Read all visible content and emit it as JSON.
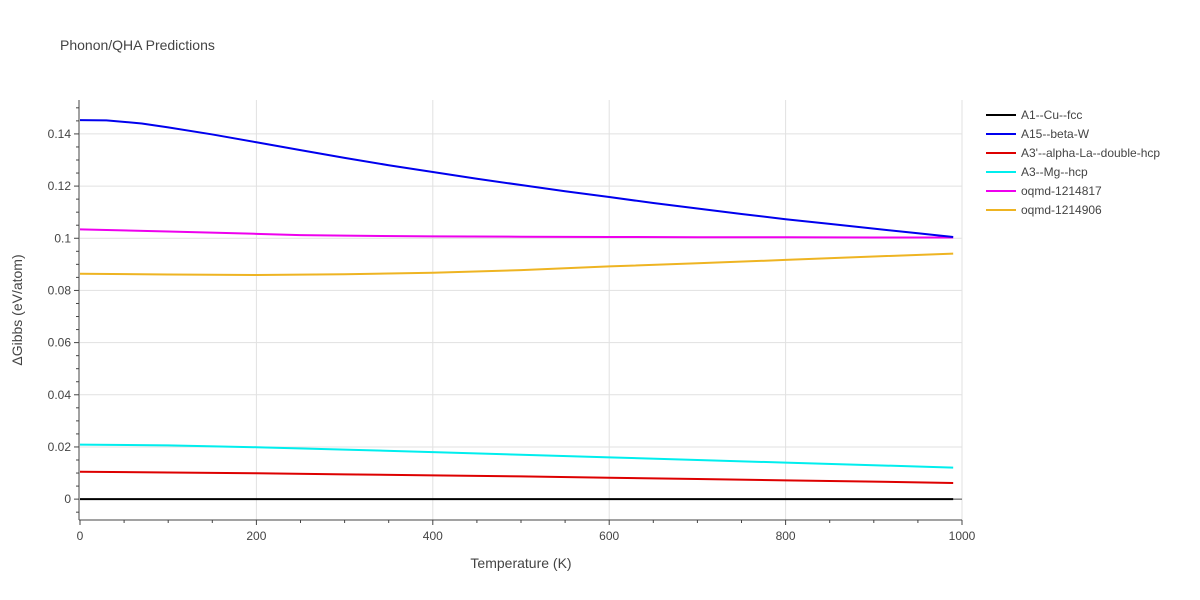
{
  "chart_data": {
    "type": "line",
    "title": "Phonon/QHA Predictions",
    "xlabel": "Temperature (K)",
    "ylabel": "ΔGibbs (eV/atom)",
    "xlim": [
      0,
      1000
    ],
    "ylim": [
      -0.008,
      0.153
    ],
    "xticks": [
      0,
      200,
      400,
      600,
      800,
      1000
    ],
    "xtick_labels": [
      "0",
      "200",
      "400",
      "600",
      "800",
      "1000"
    ],
    "yticks": [
      0,
      0.02,
      0.04,
      0.06,
      0.08,
      0.1,
      0.12,
      0.14
    ],
    "ytick_labels": [
      "0",
      "0.02",
      "0.04",
      "0.06",
      "0.08",
      "0.1",
      "0.12",
      "0.14"
    ],
    "grid": true,
    "legend_position": "top-right",
    "series": [
      {
        "name": "A1--Cu--fcc",
        "color": "#000000",
        "x": [
          0,
          990
        ],
        "y": [
          0,
          0
        ]
      },
      {
        "name": "A15--beta-W",
        "color": "#0000ee",
        "x": [
          0,
          30,
          70,
          100,
          150,
          200,
          250,
          300,
          350,
          400,
          450,
          500,
          550,
          600,
          650,
          700,
          750,
          800,
          850,
          900,
          950,
          990
        ],
        "y": [
          0.1453,
          0.1452,
          0.144,
          0.1425,
          0.1398,
          0.1368,
          0.1338,
          0.1308,
          0.128,
          0.1254,
          0.1228,
          0.1204,
          0.118,
          0.1158,
          0.1135,
          0.1114,
          0.1093,
          0.1073,
          0.1055,
          0.1037,
          0.1019,
          0.1005
        ]
      },
      {
        "name": "A3'--alpha-La--double-hcp",
        "color": "#dd0000",
        "x": [
          0,
          100,
          200,
          300,
          400,
          500,
          600,
          700,
          800,
          900,
          990
        ],
        "y": [
          0.0105,
          0.0102,
          0.0099,
          0.0095,
          0.0091,
          0.0087,
          0.0082,
          0.0077,
          0.0072,
          0.0067,
          0.0062
        ]
      },
      {
        "name": "A3--Mg--hcp",
        "color": "#00eeee",
        "x": [
          0,
          100,
          200,
          300,
          400,
          500,
          600,
          700,
          800,
          900,
          990
        ],
        "y": [
          0.0209,
          0.0206,
          0.0199,
          0.019,
          0.018,
          0.017,
          0.016,
          0.015,
          0.014,
          0.013,
          0.0121
        ]
      },
      {
        "name": "oqmd-1214817",
        "color": "#ee00ee",
        "x": [
          0,
          100,
          200,
          250,
          300,
          400,
          500,
          600,
          700,
          800,
          900,
          990
        ],
        "y": [
          0.1034,
          0.1026,
          0.1017,
          0.1012,
          0.101,
          0.1007,
          0.1006,
          0.1005,
          0.1004,
          0.1004,
          0.1003,
          0.1003
        ]
      },
      {
        "name": "oqmd-1214906",
        "color": "#eeb422",
        "x": [
          0,
          100,
          200,
          300,
          400,
          500,
          600,
          700,
          800,
          900,
          990
        ],
        "y": [
          0.0864,
          0.0861,
          0.0859,
          0.0862,
          0.0868,
          0.0878,
          0.0892,
          0.0904,
          0.0917,
          0.093,
          0.0941
        ]
      }
    ]
  }
}
